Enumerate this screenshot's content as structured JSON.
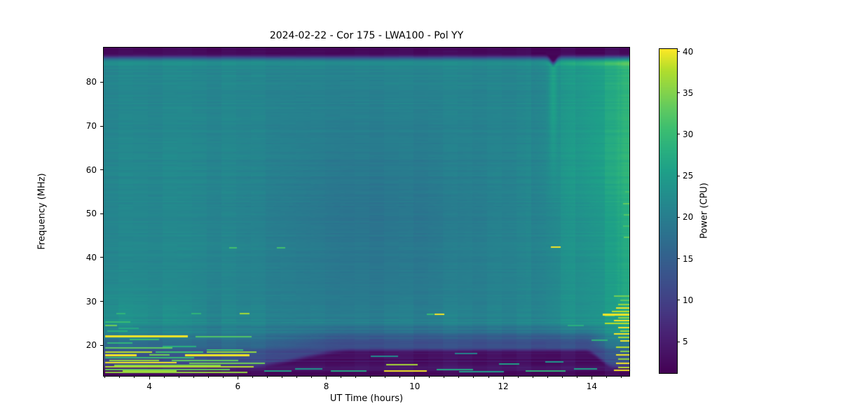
{
  "figure": {
    "title": "2024-02-22 - Cor 175 - LWA100 - Pol YY",
    "background": "#ffffff"
  },
  "axes": {
    "xlabel": "UT Time (hours)",
    "ylabel": "Frequency (MHz)",
    "x_ticks": [
      4,
      6,
      8,
      10,
      12,
      14
    ],
    "y_ticks": [
      20,
      30,
      40,
      50,
      60,
      70,
      80
    ],
    "xlim": [
      2.97,
      14.85
    ],
    "ylim": [
      13.0,
      87.9
    ],
    "minor_x_step_hours": 0.33333
  },
  "colorbar": {
    "label": "Power (CPU)",
    "ticks": [
      5,
      10,
      15,
      20,
      25,
      30,
      35,
      40
    ],
    "vmin": 1.2,
    "vmax": 40.3,
    "colormap": "viridis"
  },
  "chart_data": {
    "type": "heatmap",
    "title": "2024-02-22 - Cor 175 - LWA100 - Pol YY",
    "xlabel": "UT Time (hours)",
    "ylabel": "Frequency (MHz)",
    "value_label": "Power (CPU)",
    "x_range_hours": [
      2.97,
      14.85
    ],
    "y_range_mhz": [
      13.0,
      87.9
    ],
    "value_range": [
      1.2,
      40.3
    ],
    "colormap": "viridis",
    "colormap_stops": [
      [
        0.0,
        68,
        1,
        84
      ],
      [
        0.0625,
        71,
        19,
        101
      ],
      [
        0.125,
        72,
        35,
        116
      ],
      [
        0.1875,
        69,
        55,
        129
      ],
      [
        0.25,
        63,
        71,
        136
      ],
      [
        0.3125,
        57,
        86,
        140
      ],
      [
        0.375,
        49,
        101,
        141
      ],
      [
        0.4375,
        43,
        116,
        142
      ],
      [
        0.5,
        38,
        130,
        142
      ],
      [
        0.5625,
        33,
        145,
        140
      ],
      [
        0.625,
        30,
        160,
        136
      ],
      [
        0.6875,
        41,
        175,
        127
      ],
      [
        0.75,
        59,
        189,
        113
      ],
      [
        0.8125,
        94,
        201,
        97
      ],
      [
        0.875,
        137,
        212,
        72
      ],
      [
        0.9375,
        180,
        222,
        44
      ],
      [
        1.0,
        253,
        231,
        37
      ]
    ],
    "background_model": {
      "base": 21.5,
      "right_rise": {
        "t_start": 12.3,
        "t_end": 14.55,
        "amount": 3.2,
        "upper_extra": 1.8,
        "upper_f_start": 40,
        "upper_f_full": 65
      },
      "far_right": {
        "t_start": 14.5,
        "t_end": 14.75,
        "amount": 2.8
      },
      "left_lowfreq_bump": {
        "amount": 1.6,
        "t_fade_start": 3.0,
        "t_fade_end": 5.8,
        "f_center": 26,
        "f_sigma": 9
      },
      "mid_dip": {
        "amount": 3.0,
        "t_center": 9.2,
        "t_sigma": 2.6,
        "f_center": 48,
        "f_sigma": 26
      },
      "line_84mhz": {
        "f_center": 84.2,
        "f_sigma": 0.55,
        "base_amount": 1.3,
        "right_extra": 2.5
      },
      "top_band": {
        "fade_start_mhz": 84.6,
        "fade_end_mhz": 86.6,
        "value": 2.2
      },
      "stripe_13h": {
        "t_center": 13.13,
        "t_sigma": 0.09,
        "green_amount": 3.5,
        "green_f_start": 48,
        "green_f_full": 80,
        "top_shift_mhz": 1.4
      },
      "bottom_band": {
        "cut_base_mhz": 15.2,
        "cut_extra_mhz": 3.6,
        "rise_t": [
          6.2,
          8.6
        ],
        "fall_t": [
          13.85,
          14.5
        ],
        "dark_value": 3.1,
        "fade_value": 9.0,
        "fade_top_mhz": 25.5
      },
      "noise": {
        "row_amp": 0.55,
        "row_amp_low": 1.7,
        "col_amp": 0.45,
        "pixel_amp": 0.25,
        "row_channel_mhz": 0.35,
        "col_bin_hours": 0.3333
      }
    },
    "features": [
      {
        "f": 25.3,
        "t0": 3.0,
        "t1": 3.55,
        "p": 30
      },
      {
        "f": 24.6,
        "t0": 3.0,
        "t1": 3.25,
        "p": 34
      },
      {
        "f": 23.9,
        "t0": 3.3,
        "t1": 3.75,
        "p": 27
      },
      {
        "f": 23.2,
        "t0": 3.05,
        "t1": 3.5,
        "p": 28
      },
      {
        "f": 22.0,
        "t0": 3.0,
        "t1": 4.85,
        "p": 40,
        "th": 0.4
      },
      {
        "f": 22.0,
        "t0": 5.05,
        "t1": 6.3,
        "p": 32,
        "th": 0.35
      },
      {
        "f": 21.3,
        "t0": 3.55,
        "t1": 4.2,
        "p": 30
      },
      {
        "f": 20.6,
        "t0": 3.05,
        "t1": 3.6,
        "p": 29
      },
      {
        "f": 19.8,
        "t0": 4.3,
        "t1": 5.05,
        "p": 28
      },
      {
        "f": 19.4,
        "t0": 3.0,
        "t1": 4.5,
        "p": 33
      },
      {
        "f": 18.9,
        "t0": 5.3,
        "t1": 6.1,
        "p": 30
      },
      {
        "f": 18.4,
        "t0": 3.0,
        "t1": 4.05,
        "p": 38,
        "th": 0.35
      },
      {
        "f": 18.4,
        "t0": 4.15,
        "t1": 5.2,
        "p": 31
      },
      {
        "f": 18.4,
        "t0": 5.3,
        "t1": 6.4,
        "p": 36,
        "th": 0.3
      },
      {
        "f": 17.8,
        "t0": 3.0,
        "t1": 3.7,
        "p": 40,
        "th": 0.4
      },
      {
        "f": 17.75,
        "t0": 4.0,
        "t1": 4.45,
        "p": 34
      },
      {
        "f": 17.7,
        "t0": 4.8,
        "t1": 6.25,
        "p": 40,
        "th": 0.45
      },
      {
        "f": 17.2,
        "t0": 3.0,
        "t1": 5.0,
        "p": 30
      },
      {
        "f": 16.6,
        "t0": 3.1,
        "t1": 4.2,
        "p": 36,
        "th": 0.3
      },
      {
        "f": 16.55,
        "t0": 4.5,
        "t1": 6.0,
        "p": 33
      },
      {
        "f": 16.0,
        "t0": 3.0,
        "t1": 4.6,
        "p": 40,
        "th": 0.35
      },
      {
        "f": 15.9,
        "t0": 4.9,
        "t1": 6.6,
        "p": 34
      },
      {
        "f": 15.45,
        "t0": 3.2,
        "t1": 5.6,
        "p": 35,
        "th": 0.3
      },
      {
        "f": 15.0,
        "t0": 3.0,
        "t1": 6.35,
        "p": 38,
        "th": 0.35
      },
      {
        "f": 14.5,
        "t0": 3.0,
        "t1": 5.8,
        "p": 33,
        "th": 0.3
      },
      {
        "f": 14.15,
        "t0": 3.4,
        "t1": 4.6,
        "p": 37,
        "th": 0.3
      },
      {
        "f": 13.8,
        "t0": 3.0,
        "t1": 6.2,
        "p": 36,
        "th": 0.3
      },
      {
        "f": 42.3,
        "t0": 5.8,
        "t1": 5.97,
        "p": 31,
        "th": 0.3
      },
      {
        "f": 42.3,
        "t0": 6.88,
        "t1": 7.05,
        "p": 31,
        "th": 0.3
      },
      {
        "f": 27.2,
        "t0": 6.05,
        "t1": 6.25,
        "p": 37,
        "th": 0.3
      },
      {
        "f": 27.2,
        "t0": 3.25,
        "t1": 3.45,
        "p": 29
      },
      {
        "f": 27.2,
        "t0": 4.95,
        "t1": 5.15,
        "p": 29
      },
      {
        "f": 27.0,
        "t0": 10.45,
        "t1": 10.65,
        "p": 40,
        "th": 0.3
      },
      {
        "f": 27.1,
        "t0": 10.28,
        "t1": 10.42,
        "p": 30
      },
      {
        "f": 42.3,
        "t0": 13.08,
        "t1": 13.28,
        "p": 40,
        "th": 0.35
      },
      {
        "f": 14.2,
        "t0": 6.6,
        "t1": 7.2,
        "p": 26,
        "th": 0.3
      },
      {
        "f": 14.6,
        "t0": 7.3,
        "t1": 7.9,
        "p": 24
      },
      {
        "f": 14.2,
        "t0": 8.1,
        "t1": 8.9,
        "p": 27,
        "th": 0.3
      },
      {
        "f": 15.5,
        "t0": 9.35,
        "t1": 10.05,
        "p": 37,
        "th": 0.35
      },
      {
        "f": 14.1,
        "t0": 9.3,
        "t1": 10.25,
        "p": 40,
        "th": 0.35
      },
      {
        "f": 14.4,
        "t0": 10.5,
        "t1": 11.3,
        "p": 27
      },
      {
        "f": 14.0,
        "t0": 11.0,
        "t1": 12.0,
        "p": 25,
        "th": 0.3
      },
      {
        "f": 15.8,
        "t0": 11.9,
        "t1": 12.35,
        "p": 26
      },
      {
        "f": 14.2,
        "t0": 12.5,
        "t1": 13.4,
        "p": 29,
        "th": 0.3
      },
      {
        "f": 14.6,
        "t0": 13.6,
        "t1": 14.1,
        "p": 26
      },
      {
        "f": 16.3,
        "t0": 12.95,
        "t1": 13.35,
        "p": 24
      },
      {
        "f": 17.5,
        "t0": 9.0,
        "t1": 9.6,
        "p": 22
      },
      {
        "f": 18.2,
        "t0": 10.9,
        "t1": 11.4,
        "p": 21
      },
      {
        "f": 24.5,
        "t0": 13.45,
        "t1": 13.8,
        "p": 28
      },
      {
        "f": 21.2,
        "t0": 14.0,
        "t1": 14.35,
        "p": 29
      },
      {
        "f": 26.8,
        "t0": 14.3,
        "t1": 14.5,
        "p": 32
      },
      {
        "f": 29.3,
        "t0": 14.6,
        "t1": 14.85,
        "p": 36
      },
      {
        "f": 28.5,
        "t0": 14.55,
        "t1": 14.85,
        "p": 40,
        "th": 0.35
      },
      {
        "f": 27.8,
        "t0": 14.45,
        "t1": 14.85,
        "p": 38
      },
      {
        "f": 27.0,
        "t0": 14.25,
        "t1": 14.85,
        "p": 40,
        "th": 0.4
      },
      {
        "f": 26.3,
        "t0": 14.6,
        "t1": 14.85,
        "p": 36
      },
      {
        "f": 25.6,
        "t0": 14.5,
        "t1": 14.85,
        "p": 40,
        "th": 0.3
      },
      {
        "f": 24.9,
        "t0": 14.3,
        "t1": 14.85,
        "p": 38,
        "th": 0.35
      },
      {
        "f": 24.1,
        "t0": 14.6,
        "t1": 14.85,
        "p": 40,
        "th": 0.3
      },
      {
        "f": 23.3,
        "t0": 14.65,
        "t1": 14.85,
        "p": 36
      },
      {
        "f": 22.6,
        "t0": 14.5,
        "t1": 14.85,
        "p": 40,
        "th": 0.35
      },
      {
        "f": 21.8,
        "t0": 14.6,
        "t1": 14.85,
        "p": 37
      },
      {
        "f": 21.0,
        "t0": 14.65,
        "t1": 14.85,
        "p": 40,
        "th": 0.3
      },
      {
        "f": 19.6,
        "t0": 14.55,
        "t1": 14.85,
        "p": 38,
        "th": 0.3
      },
      {
        "f": 18.7,
        "t0": 14.65,
        "t1": 14.85,
        "p": 35
      },
      {
        "f": 17.8,
        "t0": 14.55,
        "t1": 14.85,
        "p": 40,
        "th": 0.35
      },
      {
        "f": 16.8,
        "t0": 14.6,
        "t1": 14.85,
        "p": 36
      },
      {
        "f": 15.9,
        "t0": 14.55,
        "t1": 14.85,
        "p": 40,
        "th": 0.3
      },
      {
        "f": 15.0,
        "t0": 14.6,
        "t1": 14.85,
        "p": 38
      },
      {
        "f": 14.2,
        "t0": 14.5,
        "t1": 14.85,
        "p": 40,
        "th": 0.35
      },
      {
        "f": 52.4,
        "t0": 14.7,
        "t1": 14.85,
        "p": 33
      },
      {
        "f": 49.8,
        "t0": 14.72,
        "t1": 14.85,
        "p": 32
      },
      {
        "f": 47.2,
        "t0": 14.7,
        "t1": 14.85,
        "p": 31
      },
      {
        "f": 44.6,
        "t0": 14.72,
        "t1": 14.85,
        "p": 33
      },
      {
        "f": 55.0,
        "t0": 14.75,
        "t1": 14.85,
        "p": 31
      },
      {
        "f": 31.2,
        "t0": 14.5,
        "t1": 14.85,
        "p": 34
      },
      {
        "f": 30.3,
        "t0": 14.65,
        "t1": 14.85,
        "p": 33
      }
    ]
  }
}
